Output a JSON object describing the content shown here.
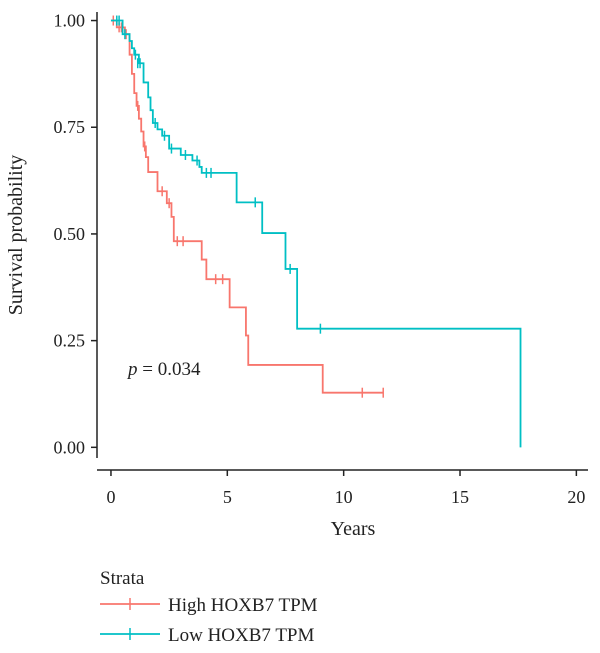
{
  "chart_data": {
    "type": "line",
    "subtype": "kaplan-meier",
    "xlabel": "Years",
    "ylabel": "Survival probability",
    "xlim": [
      -0.6,
      20.5
    ],
    "ylim": [
      -0.025,
      1.02
    ],
    "xticks": [
      0,
      5,
      10,
      15,
      20
    ],
    "yticks": [
      0.0,
      0.25,
      0.5,
      0.75,
      1.0
    ],
    "xtick_labels": [
      "0",
      "5",
      "10",
      "15",
      "20"
    ],
    "ytick_labels": [
      "0.00",
      "0.25",
      "0.50",
      "0.75",
      "1.00"
    ],
    "grid": false,
    "annotation": {
      "italic": "p",
      "text": " = 0.034",
      "x": 0.3,
      "y": 0.185
    },
    "legend": {
      "title": "Strata",
      "position": "bottom-left"
    },
    "series": [
      {
        "name": "High HOXB7 TPM",
        "color": "#F8766D",
        "steps": [
          [
            0,
            1.0
          ],
          [
            0.25,
            0.984
          ],
          [
            0.6,
            0.968
          ],
          [
            0.8,
            0.92
          ],
          [
            0.9,
            0.875
          ],
          [
            1.0,
            0.83
          ],
          [
            1.1,
            0.8
          ],
          [
            1.2,
            0.77
          ],
          [
            1.3,
            0.74
          ],
          [
            1.4,
            0.705
          ],
          [
            1.5,
            0.68
          ],
          [
            1.6,
            0.645
          ],
          [
            2.0,
            0.6
          ],
          [
            2.4,
            0.572
          ],
          [
            2.6,
            0.54
          ],
          [
            2.7,
            0.483
          ],
          [
            3.9,
            0.44
          ],
          [
            4.1,
            0.394
          ],
          [
            5.1,
            0.328
          ],
          [
            5.8,
            0.262
          ],
          [
            5.9,
            0.193
          ],
          [
            9.1,
            0.128
          ],
          [
            11.7,
            0.128
          ]
        ],
        "censored": [
          [
            0.1,
            1.0
          ],
          [
            0.35,
            0.984
          ],
          [
            0.45,
            0.984
          ],
          [
            0.65,
            0.968
          ],
          [
            1.15,
            0.8
          ],
          [
            1.45,
            0.705
          ],
          [
            2.2,
            0.6
          ],
          [
            2.5,
            0.572
          ],
          [
            2.85,
            0.483
          ],
          [
            3.1,
            0.483
          ],
          [
            4.5,
            0.394
          ],
          [
            4.8,
            0.394
          ],
          [
            10.8,
            0.128
          ],
          [
            11.7,
            0.128
          ]
        ]
      },
      {
        "name": "Low HOXB7 TPM",
        "color": "#00BFC4",
        "steps": [
          [
            0,
            1.0
          ],
          [
            0.5,
            0.968
          ],
          [
            0.8,
            0.952
          ],
          [
            0.9,
            0.935
          ],
          [
            1.0,
            0.92
          ],
          [
            1.2,
            0.9
          ],
          [
            1.4,
            0.855
          ],
          [
            1.6,
            0.82
          ],
          [
            1.7,
            0.79
          ],
          [
            1.8,
            0.76
          ],
          [
            2.0,
            0.745
          ],
          [
            2.2,
            0.73
          ],
          [
            2.5,
            0.7
          ],
          [
            3.0,
            0.685
          ],
          [
            3.5,
            0.672
          ],
          [
            3.8,
            0.657
          ],
          [
            3.9,
            0.643
          ],
          [
            5.4,
            0.574
          ],
          [
            6.5,
            0.502
          ],
          [
            7.5,
            0.418
          ],
          [
            8.0,
            0.278
          ],
          [
            17.6,
            0.0
          ]
        ],
        "censored": [
          [
            0.25,
            1.0
          ],
          [
            0.35,
            1.0
          ],
          [
            0.6,
            0.968
          ],
          [
            1.05,
            0.92
          ],
          [
            1.15,
            0.9
          ],
          [
            1.25,
            0.9
          ],
          [
            1.9,
            0.76
          ],
          [
            2.3,
            0.73
          ],
          [
            2.6,
            0.7
          ],
          [
            3.2,
            0.685
          ],
          [
            3.7,
            0.672
          ],
          [
            4.1,
            0.643
          ],
          [
            4.3,
            0.643
          ],
          [
            6.2,
            0.574
          ],
          [
            7.7,
            0.418
          ],
          [
            9.0,
            0.278
          ]
        ]
      }
    ]
  }
}
